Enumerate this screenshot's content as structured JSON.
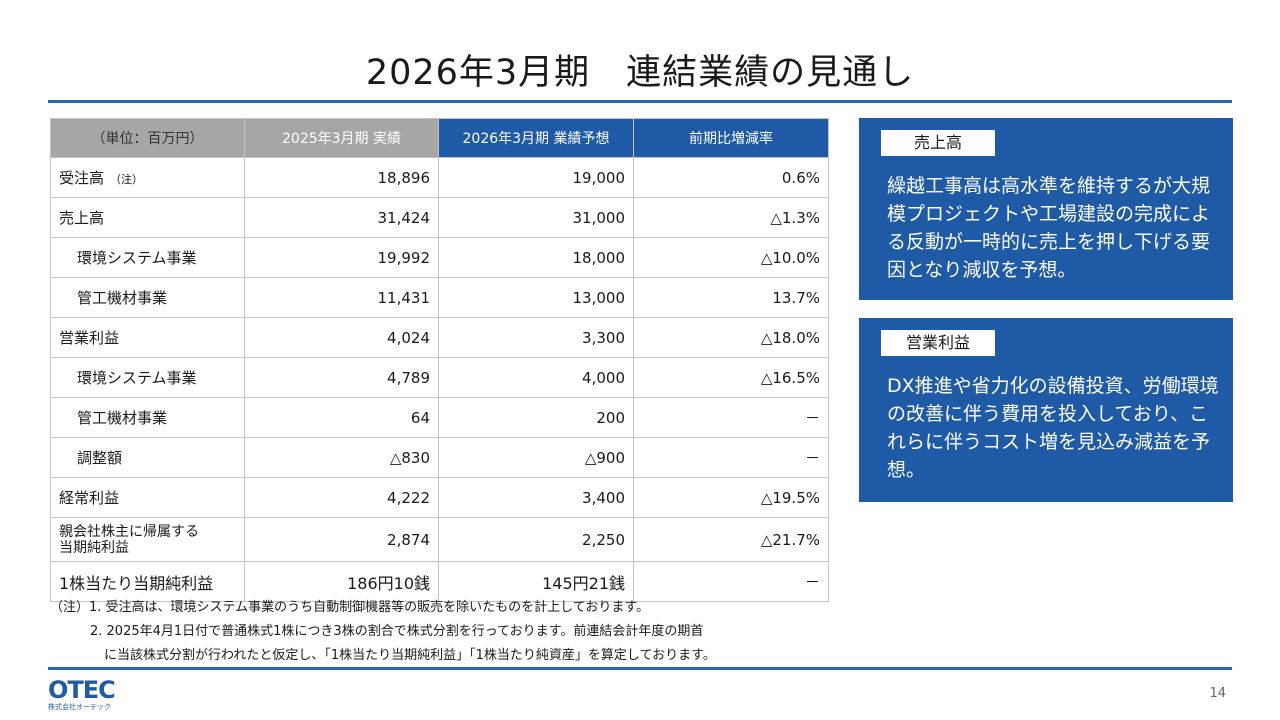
{
  "title": "2026年3月期　連結業績の見通し",
  "table": {
    "headers": {
      "unit": "（単位：百万円）",
      "prev": "2025年3月期 実績",
      "forecast": "2026年3月期 業績予想",
      "change": "前期比増減率"
    },
    "rows": [
      {
        "label": "受注高",
        "note": "（注）",
        "prev": "18,896",
        "forecast": "19,000",
        "change": "0.6%"
      },
      {
        "label": "売上高",
        "prev": "31,424",
        "forecast": "31,000",
        "change": "△1.3%"
      },
      {
        "label": "環境システム事業",
        "prev": "19,992",
        "forecast": "18,000",
        "change": "△10.0%"
      },
      {
        "label": "管工機材事業",
        "prev": "11,431",
        "forecast": "13,000",
        "change": "13.7%"
      },
      {
        "label": "営業利益",
        "prev": "4,024",
        "forecast": "3,300",
        "change": "△18.0%"
      },
      {
        "label": "環境システム事業",
        "prev": "4,789",
        "forecast": "4,000",
        "change": "△16.5%"
      },
      {
        "label": "管工機材事業",
        "prev": "64",
        "forecast": "200",
        "change": "－"
      },
      {
        "label": "調整額",
        "prev": "△830",
        "forecast": "△900",
        "change": "－"
      },
      {
        "label": "経常利益",
        "prev": "4,222",
        "forecast": "3,400",
        "change": "△19.5%"
      },
      {
        "label_line1": "親会社株主に帰属する",
        "label_line2": "当期純利益",
        "prev": "2,874",
        "forecast": "2,250",
        "change": "△21.7%"
      },
      {
        "label": "1株当たり当期純利益",
        "prev": "186円10銭",
        "forecast": "145円21銭",
        "change": "－"
      }
    ]
  },
  "notes": [
    "（注）1. 受注高は、環境システム事業のうち自動制御機器等の販売を除いたものを計上しております。",
    "2. 2025年4月1日付で普通株式1株につき3株の割合で株式分割を行っております。前連結会計年度の期首",
    "に当該株式分割が行われたと仮定し、「1株当たり当期純利益」「1株当たり純資産」を算定しております。"
  ],
  "boxes": [
    {
      "tag": "売上高",
      "body": "繰越工事高は高水準を維持するが大規模プロジェクトや工場建設の完成による反動が一時的に売上を押し下げる要因となり減収を予想。"
    },
    {
      "tag": "営業利益",
      "body": "DX推進や省力化の設備投資、労働環境の改善に伴う費用を投入しており、これらに伴うコスト増を見込み減益を予想。"
    }
  ],
  "logo": {
    "mark": "OTEC",
    "sub": "株式会社オーテック"
  },
  "page_number": "14",
  "colors": {
    "accent": "#1f5aa6",
    "header_gray": "#a6a6a6",
    "rule": "#2a66b1"
  }
}
